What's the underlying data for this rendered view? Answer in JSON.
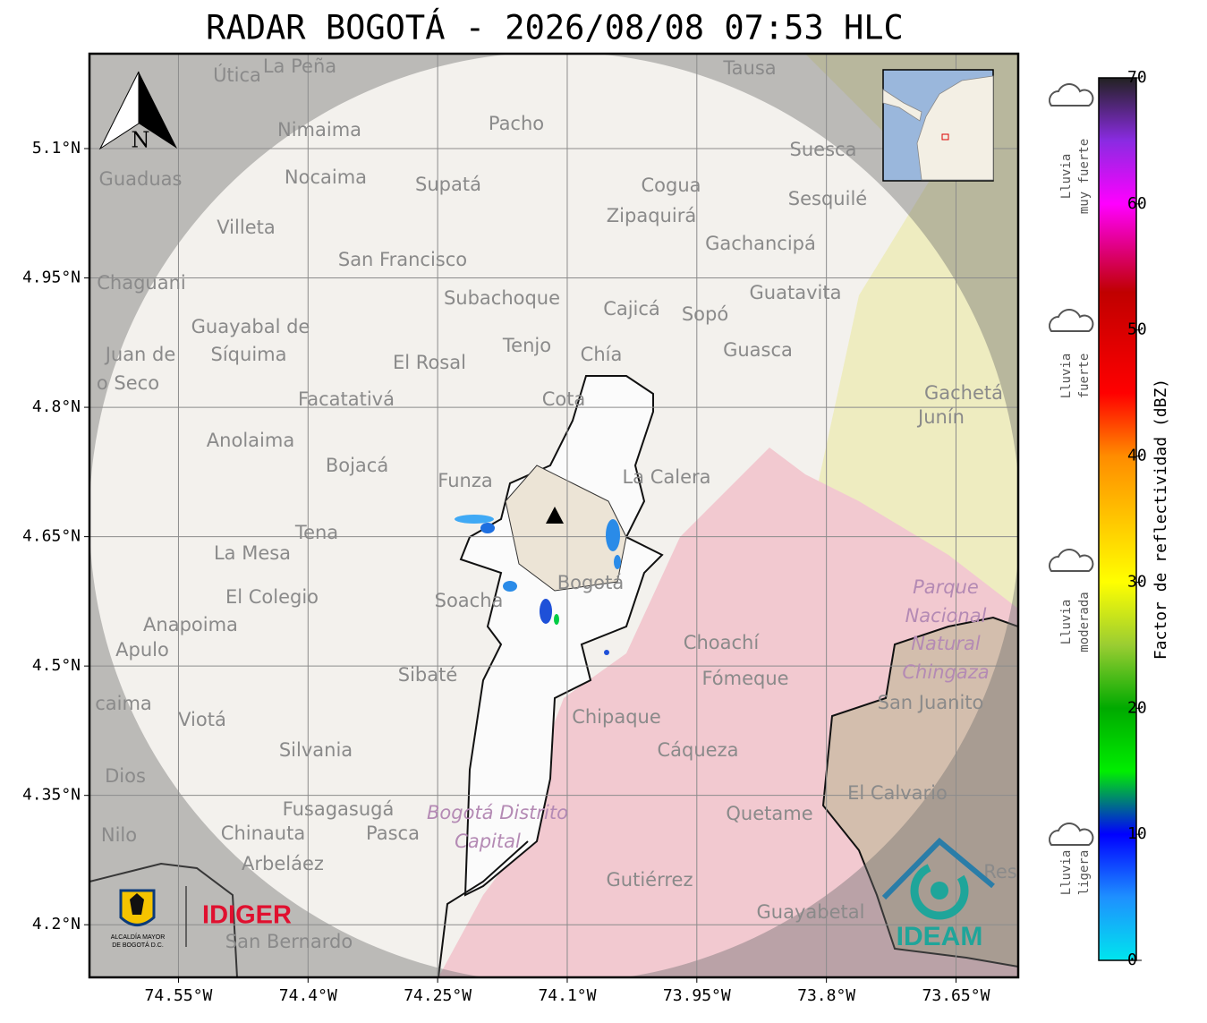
{
  "title": "RADAR BOGOTÁ - 2026/08/08 07:53 HLC",
  "map": {
    "xlim": [
      -74.653,
      -73.578
    ],
    "ylim": [
      4.139,
      5.21
    ],
    "xticks": [
      {
        "value": -74.55,
        "label": "74.55°W"
      },
      {
        "value": -74.4,
        "label": "74.4°W"
      },
      {
        "value": -74.25,
        "label": "74.25°W"
      },
      {
        "value": -74.1,
        "label": "74.1°W"
      },
      {
        "value": -73.95,
        "label": "73.95°W"
      },
      {
        "value": -73.8,
        "label": "73.8°W"
      },
      {
        "value": -73.65,
        "label": "73.65°W"
      }
    ],
    "yticks": [
      {
        "value": 4.2,
        "label": "4.2°N"
      },
      {
        "value": 4.35,
        "label": "4.35°N"
      },
      {
        "value": 4.5,
        "label": "4.5°N"
      },
      {
        "value": 4.65,
        "label": "4.65°N"
      },
      {
        "value": 4.8,
        "label": "4.8°N"
      },
      {
        "value": 4.95,
        "label": "4.95°N"
      },
      {
        "value": 5.1,
        "label": "5.1°N"
      }
    ],
    "grid": true,
    "north": "N",
    "places": [
      "Útica",
      "La Peña",
      "Tausa",
      "Pacho",
      "Nimaima",
      "Guaduas",
      "Nocaima",
      "Supatá",
      "Cogua",
      "Suesca",
      "Sesquilé",
      "Zipaquirá",
      "Villeta",
      "Gachancipá",
      "San Francisco",
      "Chaguani",
      "Guatavita",
      "Subachoque",
      "Cajicá",
      "Sopó",
      "Guayabal de",
      "Síquima",
      "Tenjo",
      "Chía",
      "Guasca",
      "Juan de",
      "El Rosal",
      "o Seco",
      "Facatativá",
      "Cota",
      "Gachetá",
      "Junín",
      "Anolaima",
      "Bojacá",
      "La Calera",
      "Funza",
      "Tena",
      "La Mesa",
      "Bogotá",
      "El Colegio",
      "Soacha",
      "Anapoima",
      "Apulo",
      "Choachí",
      "Fómeque",
      "Sibaté",
      "San Juanito",
      "caima",
      "Viotá",
      "Chipaque",
      "Silvania",
      "Cáqueza",
      "Dios",
      "El Calvario",
      "Fusagasugá",
      "Quetame",
      "Nilo",
      "Chinauta",
      "Pasca",
      "Arbeláez",
      "Gutiérrez",
      "Res",
      "Guayabetal",
      "San Bernardo"
    ],
    "park_labels": [
      "Parque",
      "Nacional",
      "Natural",
      "Chingaza",
      "Bogotá Distrito",
      "Capital"
    ]
  },
  "colorbar": {
    "label": "Factor de reflectividad (dBZ)",
    "lim": [
      0,
      70
    ],
    "ticks": [
      0,
      10,
      20,
      30,
      40,
      50,
      60,
      70
    ],
    "stops": [
      {
        "value": 0,
        "color": "#00e5ee"
      },
      {
        "value": 5,
        "color": "#1e90ff"
      },
      {
        "value": 10,
        "color": "#0000ff"
      },
      {
        "value": 15,
        "color": "#00ee00"
      },
      {
        "value": 20,
        "color": "#00aa00"
      },
      {
        "value": 25,
        "color": "#9acd32"
      },
      {
        "value": 30,
        "color": "#ffff00"
      },
      {
        "value": 40,
        "color": "#ff8c00"
      },
      {
        "value": 45,
        "color": "#ff0000"
      },
      {
        "value": 53,
        "color": "#c00000"
      },
      {
        "value": 60,
        "color": "#ff00ff"
      },
      {
        "value": 65,
        "color": "#8a2be2"
      },
      {
        "value": 70,
        "color": "#222222"
      }
    ],
    "rain_labels": [
      [
        "Lluvia",
        "muy fuerte"
      ],
      [
        "Lluvia",
        "fuerte"
      ],
      [
        "Lluvia",
        "moderada"
      ],
      [
        "Lluvia",
        "ligera"
      ]
    ]
  },
  "logos": {
    "alcaldia": [
      "ALCALDÍA MAYOR",
      "DE BOGOTÁ D.C."
    ],
    "idiger": "IDIGER",
    "ideam": "IDEAM"
  }
}
